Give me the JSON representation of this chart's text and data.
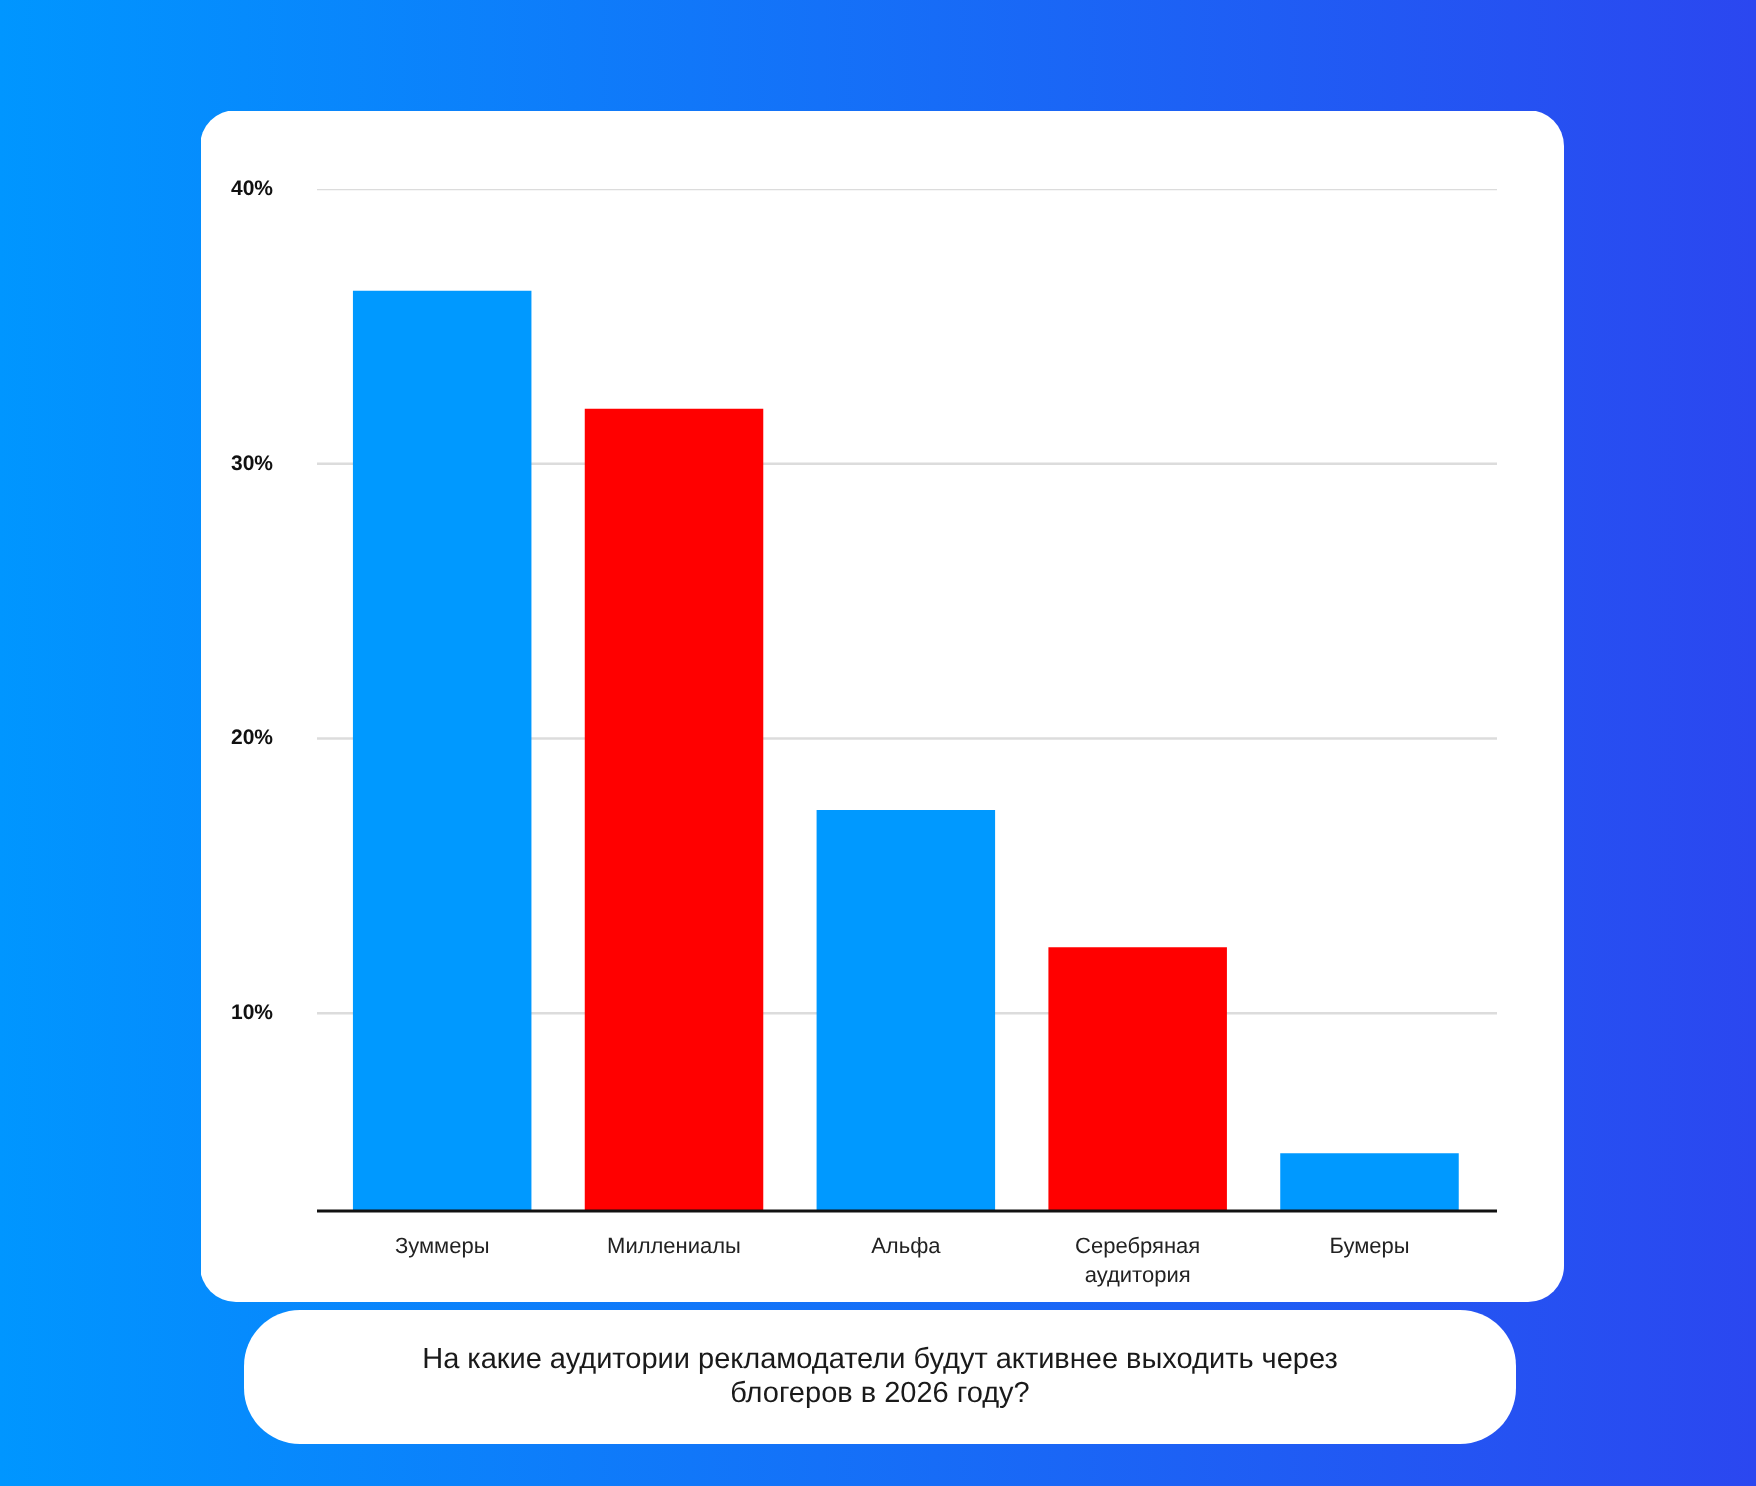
{
  "chart_data": {
    "type": "bar",
    "title": "На какие аудитории рекламодатели будут активнее выходить через блогеров в 2026 году?",
    "categories": [
      "Зуммеры",
      "Миллениалы",
      "Альфа",
      "Серебряная аудитория",
      "Бумеры"
    ],
    "values": [
      36.3,
      32.0,
      17.4,
      12.4,
      4.9
    ],
    "colors": [
      "#0099ff",
      "#ff0000",
      "#0099ff",
      "#ff0000",
      "#0099ff"
    ],
    "ylim": [
      2.8,
      40
    ],
    "yticks": [
      {
        "value": 10,
        "label": "10%"
      },
      {
        "value": 20,
        "label": "20%"
      },
      {
        "value": 30,
        "label": "30%"
      },
      {
        "value": 40,
        "label": "40%"
      }
    ],
    "grid": "y"
  }
}
